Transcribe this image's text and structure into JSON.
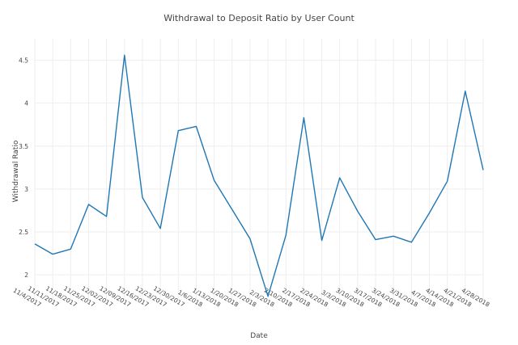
{
  "chart_data": {
    "type": "line",
    "title": "Withdrawal to Deposit Ratio by User Count",
    "xlabel": "Date",
    "ylabel": "Withdrawal Ratio",
    "grid": true,
    "ylim": [
      1.7,
      4.75
    ],
    "y_ticks": [
      "2",
      "2.5",
      "3",
      "3.5",
      "4",
      "4.5"
    ],
    "y_tick_values": [
      2,
      2.5,
      3,
      3.5,
      4,
      4.5
    ],
    "x_tick_labels": [
      "11/4/2017",
      "11/11/2017",
      "11/18/2017",
      "11/25/2017",
      "12/02/2017",
      "12/09/2017",
      "12/16/2017",
      "12/23/2017",
      "12/30/2017",
      "1/6/2018",
      "1/13/2018",
      "1/20/2018",
      "1/27/2018",
      "2/3/2018",
      "2/10/2018",
      "2/17/2018",
      "2/24/2018",
      "3/3/2018",
      "3/10/2018",
      "3/17/2018",
      "3/24/2018",
      "3/31/2018",
      "4/7/2018",
      "4/14/2018",
      "4/21/2018",
      "4/28/2018"
    ],
    "series": [
      {
        "x": [
          "11/4/2017",
          "11/11/2017",
          "11/18/2017",
          "11/25/2017",
          "12/02/2017",
          "12/09/2017",
          "12/16/2017",
          "12/23/2017",
          "12/30/2017",
          "1/6/2018",
          "1/13/2018",
          "1/20/2018",
          "1/27/2018",
          "2/3/2018",
          "2/10/2018",
          "2/17/2018",
          "2/24/2018",
          "3/3/2018",
          "3/10/2018",
          "3/17/2018",
          "3/24/2018",
          "3/31/2018",
          "4/7/2018",
          "4/14/2018",
          "4/21/2018",
          "4/28/2018"
        ],
        "values": [
          2.36,
          2.24,
          2.3,
          2.82,
          2.68,
          4.56,
          2.9,
          2.54,
          3.68,
          3.73,
          3.1,
          2.76,
          2.42,
          1.75,
          2.46,
          3.83,
          2.4,
          3.13,
          2.74,
          2.41,
          2.45,
          2.38,
          2.72,
          3.09,
          4.14,
          3.22
        ],
        "color": "#1f77b4"
      }
    ]
  }
}
